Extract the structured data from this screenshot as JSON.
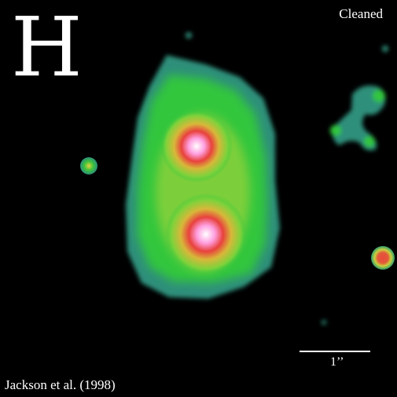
{
  "figure": {
    "band_label": "H",
    "status_label": "Cleaned",
    "credit": "Jackson et al. (1998)",
    "scale_bar_label": "1’’"
  },
  "palette": {
    "halo": "#2f8f7a",
    "green": "#33c63c",
    "yellow": "#c8d43a",
    "red": "#e2463f",
    "core": "#ffffff"
  }
}
